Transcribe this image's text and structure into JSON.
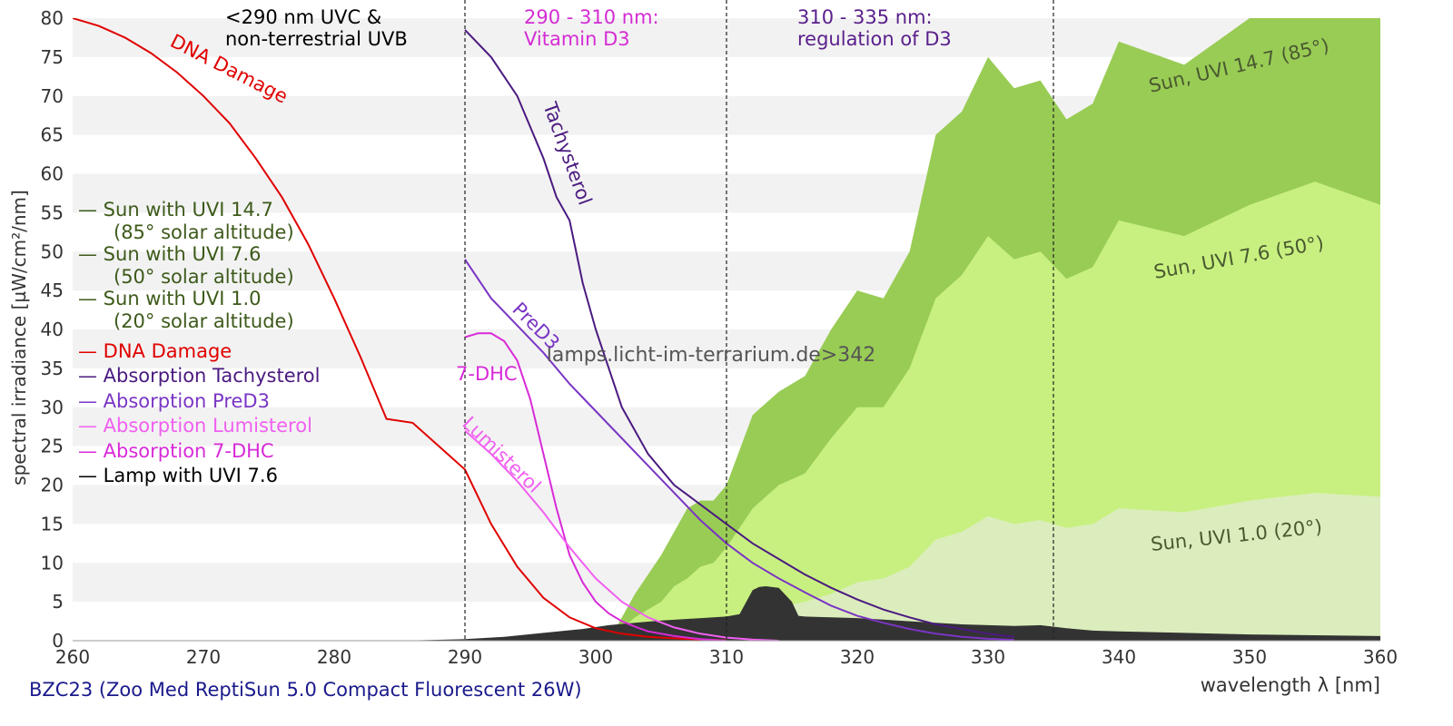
{
  "chart_data": {
    "type": "area",
    "title": "",
    "caption": "BZC23 (Zoo Med ReptiSun 5.0 Compact Fluorescent 26W)",
    "watermark": "lamps.licht-im-terrarium.de>342",
    "xlabel": "wavelength λ [nm]",
    "ylabel": "spectral irradiance [µW/cm²/nm]",
    "xlim": [
      260,
      360
    ],
    "ylim": [
      0,
      80
    ],
    "x_ticks": [
      "260",
      "270",
      "280",
      "290",
      "300",
      "310",
      "320",
      "330",
      "340",
      "350",
      "360"
    ],
    "y_ticks": [
      "0",
      "5",
      "10",
      "15",
      "20",
      "25",
      "30",
      "35",
      "40",
      "45",
      "50",
      "55",
      "60",
      "65",
      "70",
      "75",
      "80"
    ],
    "grid": "horizontal bands",
    "region_lines": [
      290,
      310,
      335
    ],
    "region_labels": [
      {
        "line1": "<290 nm UVC &",
        "line2": "non-terrestrial UVB",
        "color": "#000000"
      },
      {
        "line1": "290 - 310 nm:",
        "line2": "Vitamin D3",
        "color": "#d42cd4"
      },
      {
        "line1": "310 - 335 nm:",
        "line2": "regulation of D3",
        "color": "#5a1f8c"
      }
    ],
    "legend": [
      {
        "line1": "— Sun with UVI 14.7",
        "line2": "(85° solar altitude)",
        "color": "#3d5a1a"
      },
      {
        "line1": "— Sun with UVI 7.6",
        "line2": "(50° solar altitude)",
        "color": "#3d5a1a"
      },
      {
        "line1": "— Sun with UVI 1.0",
        "line2": "(20° solar altitude)",
        "color": "#3d5a1a"
      },
      {
        "line1": "— DNA Damage",
        "line2": "",
        "color": "#e00000"
      },
      {
        "line1": "— Absorption Tachysterol",
        "line2": "",
        "color": "#4b1a80"
      },
      {
        "line1": "— Absorption PreD3",
        "line2": "",
        "color": "#7a35c4"
      },
      {
        "line1": "— Absorption Lumisterol",
        "line2": "",
        "color": "#f060f0"
      },
      {
        "line1": "— Absorption 7-DHC",
        "line2": "",
        "color": "#d82ad8"
      },
      {
        "line1": "— Lamp with UVI 7.6",
        "line2": "",
        "color": "#000000"
      }
    ],
    "area_series": [
      {
        "name": "Sun, UVI 14.7 (85°)",
        "color": "#99cc55",
        "x": [
          301,
          303,
          305,
          306,
          307,
          308,
          309,
          310,
          312,
          314,
          316,
          318,
          320,
          322,
          324,
          326,
          328,
          330,
          332,
          334,
          336,
          338,
          340,
          345,
          350,
          355,
          360
        ],
        "y": [
          0,
          6,
          11,
          14,
          17,
          18,
          18,
          20,
          29,
          32,
          34,
          40,
          45,
          44,
          50,
          65,
          68,
          75,
          71,
          72,
          67,
          69,
          77,
          74,
          80,
          84,
          80
        ]
      },
      {
        "name": "Sun, UVI 7.6 (50°)",
        "color": "#c8f080",
        "x": [
          301,
          303,
          305,
          306,
          307,
          308,
          309,
          310,
          312,
          314,
          316,
          318,
          320,
          322,
          324,
          326,
          328,
          330,
          332,
          334,
          336,
          338,
          340,
          345,
          350,
          355,
          360
        ],
        "y": [
          0,
          3,
          5,
          7,
          8,
          9.5,
          10,
          12,
          17,
          20,
          21.5,
          26,
          30,
          30,
          35,
          44,
          47,
          52,
          49,
          50,
          46.5,
          48,
          54,
          52,
          56,
          59,
          56
        ]
      },
      {
        "name": "Sun, UVI 1.0 (20°)",
        "color": "#dbedbc",
        "x": [
          301,
          303,
          305,
          306,
          307,
          308,
          309,
          310,
          312,
          314,
          316,
          318,
          320,
          322,
          324,
          326,
          328,
          330,
          332,
          334,
          336,
          338,
          340,
          345,
          350,
          355,
          360
        ],
        "y": [
          0,
          0.6,
          1,
          1.3,
          1.6,
          2,
          2.2,
          2.6,
          3.6,
          4.3,
          5,
          6,
          7.5,
          8,
          9.5,
          13,
          14,
          16,
          15,
          15.5,
          14.5,
          15,
          17,
          16.5,
          18,
          19,
          18.5
        ]
      },
      {
        "name": "Lamp with UVI 7.6",
        "color": "#333333",
        "x": [
          260,
          285,
          290,
          293,
          296,
          299,
          301,
          303,
          305,
          307,
          309,
          310,
          311,
          312,
          312.5,
          313,
          314,
          315,
          315.5,
          316,
          318,
          320,
          322,
          324,
          326,
          328,
          330,
          332,
          334,
          336,
          338,
          340,
          345,
          350,
          355,
          360
        ],
        "y": [
          0,
          0,
          0.2,
          0.5,
          1,
          1.5,
          2,
          2.3,
          2.6,
          2.8,
          3,
          3.1,
          3.4,
          6.5,
          6.9,
          7,
          6.8,
          5,
          3.2,
          3.1,
          3,
          2.9,
          2.7,
          2.5,
          2.3,
          2.1,
          2,
          1.9,
          2,
          1.6,
          1.3,
          1.2,
          1,
          0.8,
          0.7,
          0.6
        ]
      }
    ],
    "line_series": [
      {
        "name": "DNA Damage",
        "color": "#e00000",
        "label": "DNA Damage",
        "x": [
          260,
          262,
          264,
          266,
          268,
          270,
          272,
          274,
          276,
          278,
          280,
          282,
          284,
          286,
          288,
          290,
          292,
          294,
          296,
          298,
          300,
          302,
          304,
          306,
          308,
          310
        ],
        "y": [
          80,
          79,
          77.5,
          75.5,
          73,
          70,
          66.5,
          62,
          57,
          51,
          44,
          36.5,
          28.5,
          28,
          25,
          22,
          15,
          9.5,
          5.5,
          3,
          1.6,
          0.9,
          0.5,
          0.3,
          0.15,
          0.05
        ]
      },
      {
        "name": "Absorption Tachysterol",
        "color": "#4b1a80",
        "label": "Tachysterol",
        "x": [
          290,
          292,
          294,
          296,
          297,
          298,
          299,
          300,
          302,
          304,
          306,
          308,
          310,
          312,
          314,
          316,
          318,
          320,
          322,
          324,
          326,
          328,
          330,
          332
        ],
        "y": [
          78.5,
          75,
          70,
          62,
          57,
          54,
          46,
          40,
          30,
          24,
          20,
          17.5,
          15,
          12.5,
          10.5,
          8.5,
          6.8,
          5.3,
          4,
          3,
          2.1,
          1.5,
          0.9,
          0.5
        ]
      },
      {
        "name": "Absorption PreD3",
        "color": "#7a35c4",
        "label": "PreD3",
        "x": [
          290,
          292,
          294,
          296,
          298,
          300,
          302,
          304,
          306,
          308,
          310,
          312,
          314,
          316,
          318,
          320,
          322,
          324,
          326,
          328,
          330,
          332
        ],
        "y": [
          49,
          44,
          40.5,
          37,
          33,
          29.5,
          26,
          22.5,
          19,
          15.5,
          12.5,
          10,
          8,
          6.2,
          4.5,
          3.2,
          2.3,
          1.5,
          0.9,
          0.5,
          0.25,
          0.1
        ]
      },
      {
        "name": "Absorption 7-DHC",
        "color": "#d82ad8",
        "label": "7-DHC",
        "x": [
          290,
          291,
          292,
          293,
          294,
          295,
          296,
          297,
          298,
          299,
          300,
          301,
          302,
          303,
          304,
          306,
          308,
          310
        ],
        "y": [
          39,
          39.5,
          39.5,
          38.5,
          36,
          31,
          24,
          17,
          11,
          7.5,
          5,
          3.5,
          2.5,
          1.8,
          1.2,
          0.6,
          0.2,
          0
        ]
      },
      {
        "name": "Absorption Lumisterol",
        "color": "#f060f0",
        "label": "Lumisterol",
        "x": [
          290,
          292,
          294,
          296,
          298,
          300,
          302,
          304,
          306,
          308,
          310,
          312,
          314
        ],
        "y": [
          27,
          24,
          20.5,
          16.5,
          12,
          8,
          5,
          3,
          1.7,
          0.9,
          0.4,
          0.15,
          0
        ]
      }
    ]
  }
}
